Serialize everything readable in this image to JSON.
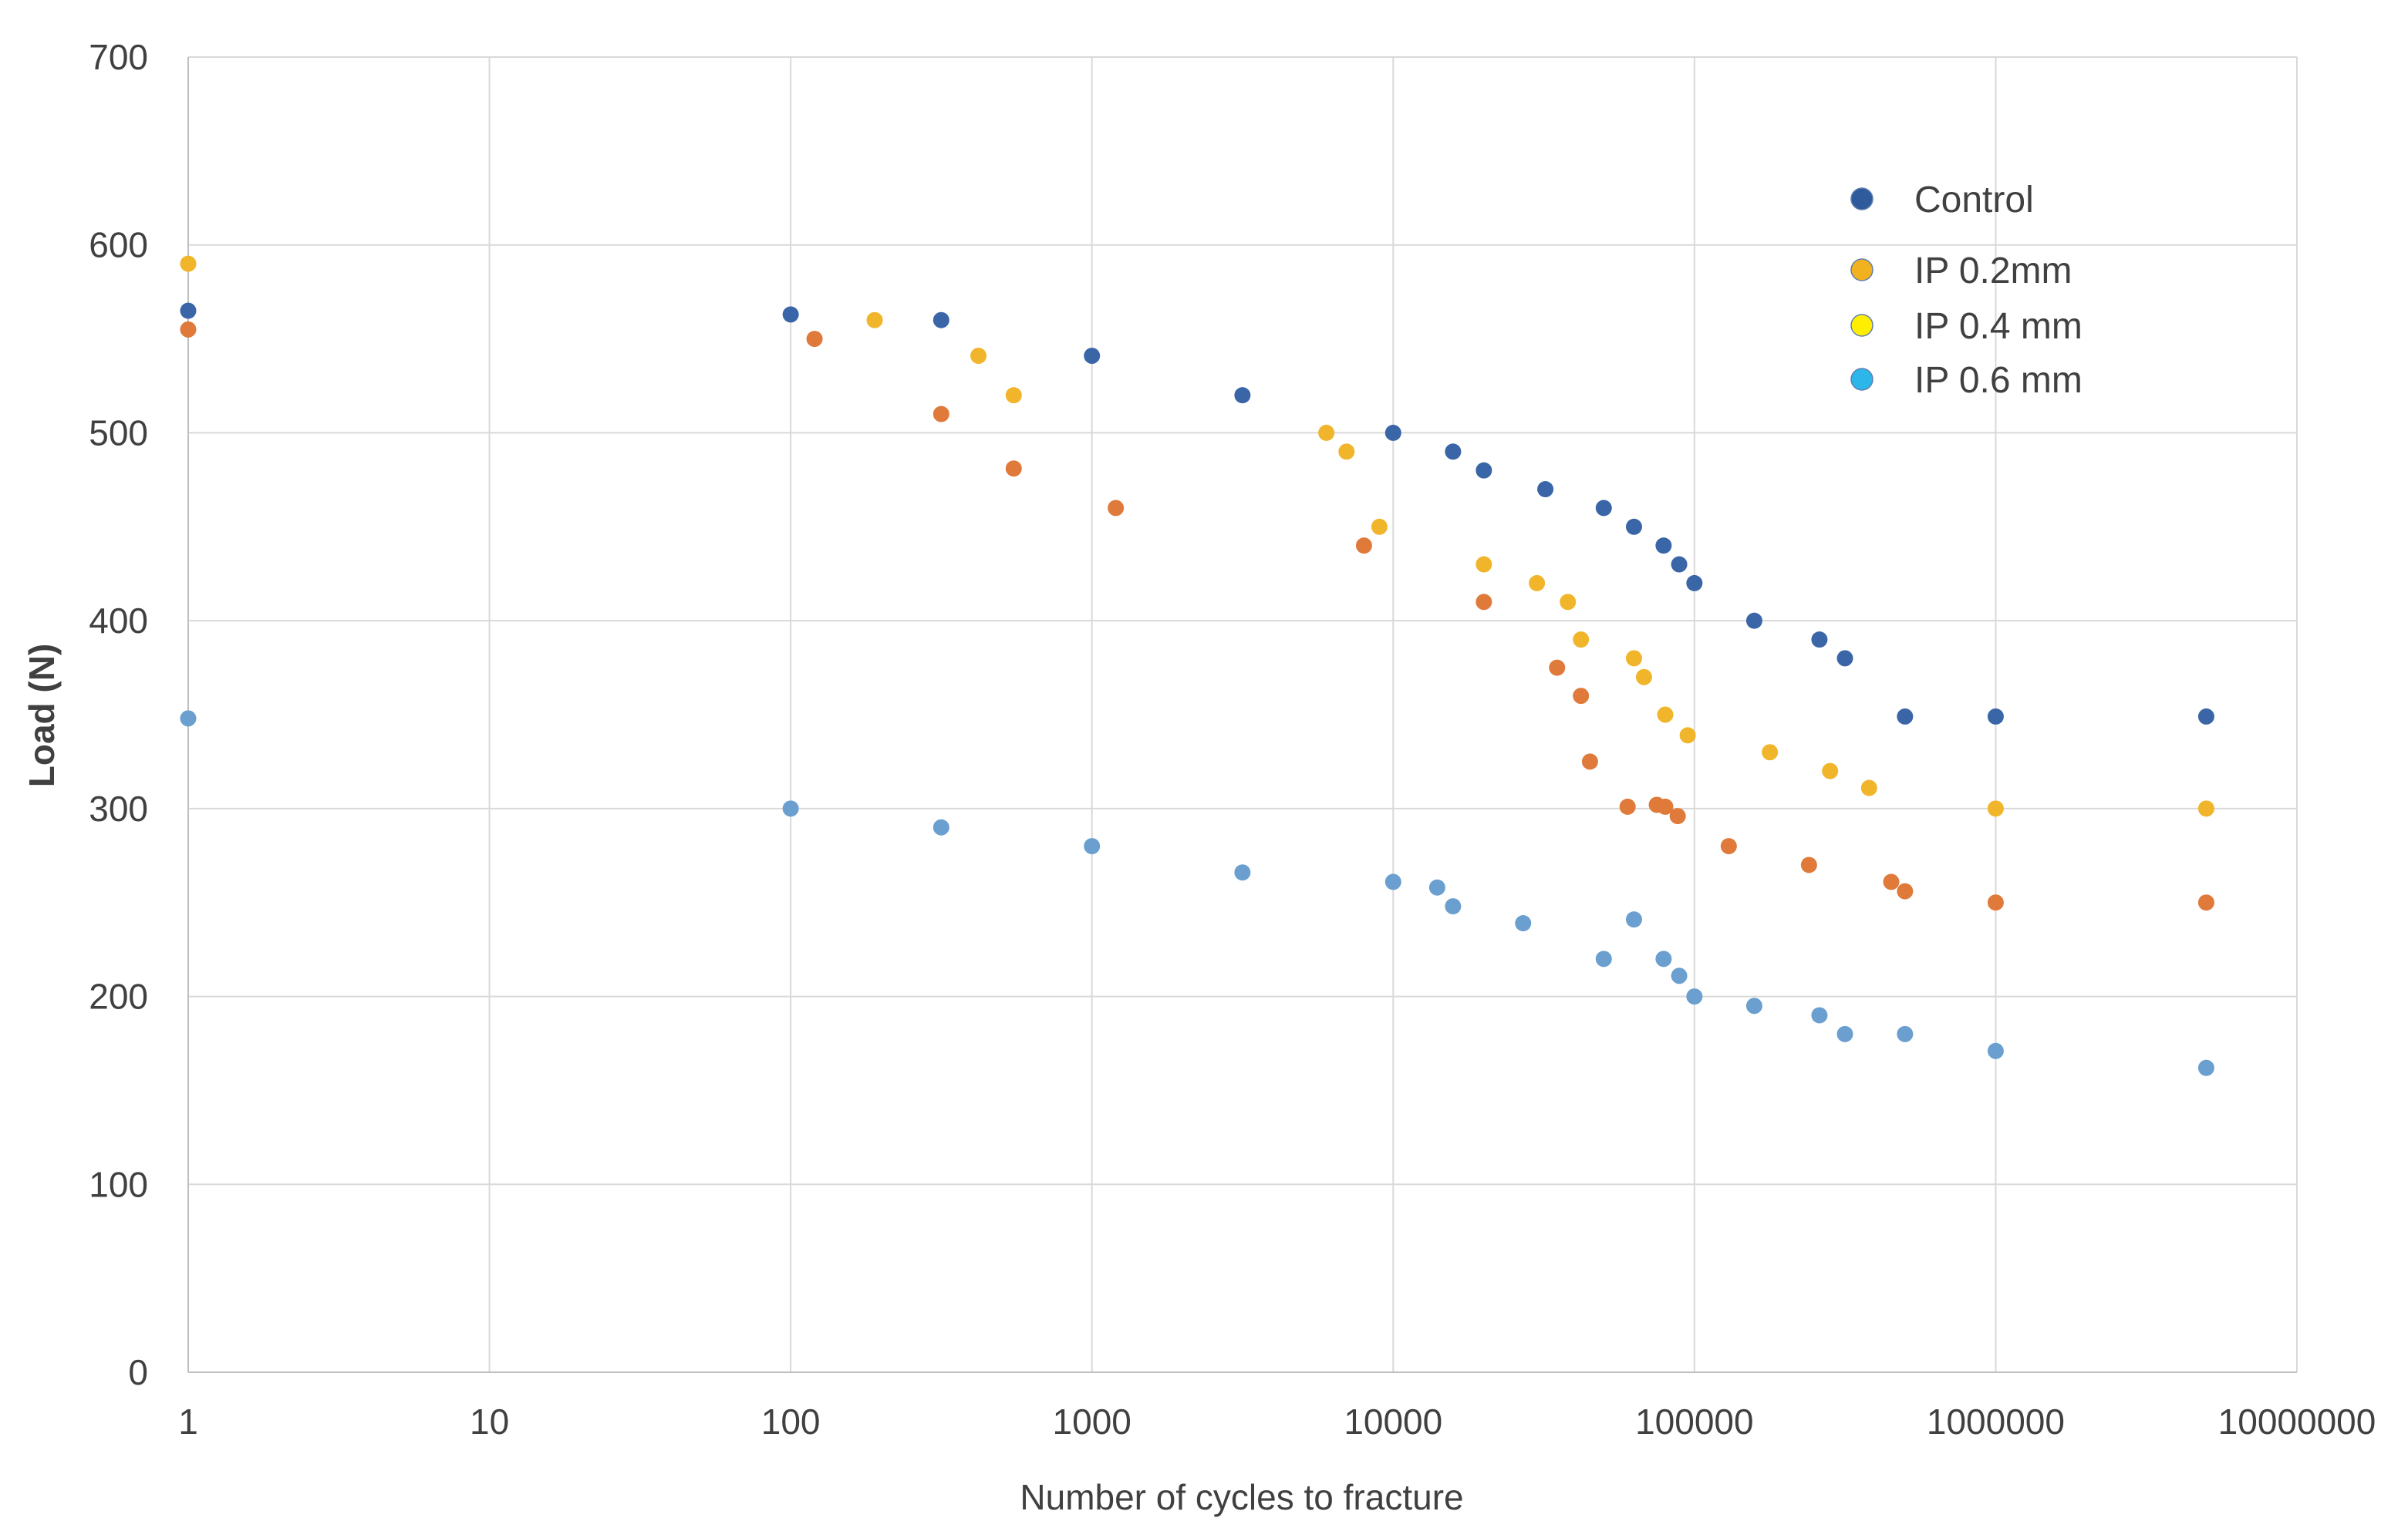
{
  "chart_data": {
    "type": "scatter",
    "title": "",
    "xlabel": "Number of cycles to fracture",
    "ylabel": "Load (N)",
    "x_scale": "log",
    "xlim": [
      1,
      10000000
    ],
    "ylim": [
      0,
      700
    ],
    "grid": true,
    "legend_position": "top-right",
    "x_tick_labels": [
      "1",
      "10",
      "100",
      "1000",
      "10000",
      "100000",
      "1000000",
      "10000000"
    ],
    "y_tick_labels": [
      "0",
      "100",
      "200",
      "300",
      "400",
      "500",
      "600",
      "700"
    ],
    "series": [
      {
        "name": "Control",
        "color": "#3a66a8",
        "points": [
          [
            1,
            565
          ],
          [
            100,
            563
          ],
          [
            316,
            560
          ],
          [
            1000,
            541
          ],
          [
            3160,
            520
          ],
          [
            10000,
            500
          ],
          [
            15800,
            490
          ],
          [
            20000,
            480
          ],
          [
            32000,
            470
          ],
          [
            50000,
            460
          ],
          [
            63000,
            450
          ],
          [
            79000,
            440
          ],
          [
            89000,
            430
          ],
          [
            100000,
            420
          ],
          [
            158000,
            400
          ],
          [
            260000,
            390
          ],
          [
            316000,
            380
          ],
          [
            500000,
            349
          ],
          [
            1000000,
            349
          ],
          [
            5000000,
            349
          ]
        ]
      },
      {
        "name": "IP 0.2mm",
        "color": "#f0b52a",
        "points": [
          [
            1,
            590
          ],
          [
            190,
            560
          ],
          [
            420,
            541
          ],
          [
            550,
            520
          ],
          [
            6000,
            500
          ],
          [
            7000,
            490
          ],
          [
            9000,
            450
          ],
          [
            20000,
            430
          ],
          [
            30000,
            420
          ],
          [
            38000,
            410
          ],
          [
            42000,
            390
          ],
          [
            63000,
            380
          ],
          [
            68000,
            370
          ],
          [
            80000,
            350
          ],
          [
            95000,
            339
          ],
          [
            178000,
            330
          ],
          [
            282000,
            320
          ],
          [
            380000,
            311
          ],
          [
            1000000,
            300
          ],
          [
            5000000,
            300
          ]
        ]
      },
      {
        "name": "IP 0.4 mm",
        "color": "#e07a3a",
        "points": [
          [
            1,
            555
          ],
          [
            120,
            550
          ],
          [
            316,
            510
          ],
          [
            550,
            481
          ],
          [
            1200,
            460
          ],
          [
            8000,
            440
          ],
          [
            20000,
            410
          ],
          [
            35000,
            375
          ],
          [
            42000,
            360
          ],
          [
            45000,
            325
          ],
          [
            60000,
            301
          ],
          [
            75000,
            302
          ],
          [
            80000,
            301
          ],
          [
            88000,
            296
          ],
          [
            130000,
            280
          ],
          [
            240000,
            270
          ],
          [
            450000,
            261
          ],
          [
            500000,
            256
          ],
          [
            1000000,
            250
          ],
          [
            5000000,
            250
          ]
        ]
      },
      {
        "name": "IP 0.6 mm",
        "color": "#6a9fd0",
        "points": [
          [
            1,
            348
          ],
          [
            100,
            300
          ],
          [
            316,
            290
          ],
          [
            1000,
            280
          ],
          [
            3160,
            266
          ],
          [
            10000,
            261
          ],
          [
            14000,
            258
          ],
          [
            15800,
            248
          ],
          [
            27000,
            239
          ],
          [
            50000,
            220
          ],
          [
            63000,
            241
          ],
          [
            79000,
            220
          ],
          [
            89000,
            211
          ],
          [
            100000,
            200
          ],
          [
            158000,
            195
          ],
          [
            260000,
            190
          ],
          [
            316000,
            180
          ],
          [
            500000,
            180
          ],
          [
            1000000,
            171
          ],
          [
            5000000,
            162
          ]
        ]
      }
    ],
    "legend": [
      {
        "label": "Control",
        "color": "#2f5a9c"
      },
      {
        "label": "IP 0.2mm",
        "color": "#f2b21f"
      },
      {
        "label": "IP 0.4 mm",
        "color": "#ffee00"
      },
      {
        "label": "IP 0.6 mm",
        "color": "#2cb6ea"
      }
    ]
  }
}
